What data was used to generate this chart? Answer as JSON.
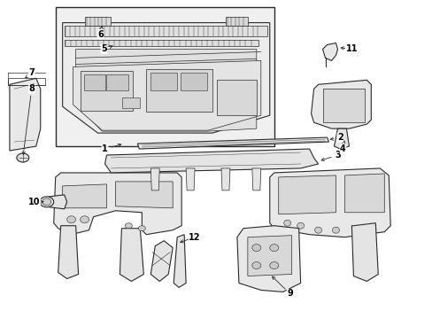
{
  "background_color": "#ffffff",
  "line_color": "#2a2a2a",
  "text_color": "#000000",
  "fig_width": 4.89,
  "fig_height": 3.6,
  "dpi": 100,
  "inset_fill": "#f0f0f0",
  "part_fill": "#e8e8e8",
  "part_fill2": "#d8d8d8",
  "white": "#ffffff",
  "gray_light": "#cccccc"
}
